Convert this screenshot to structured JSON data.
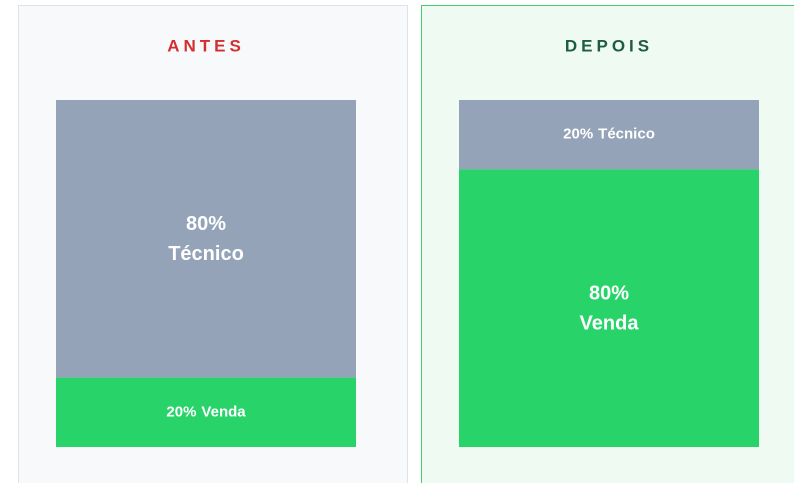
{
  "chart_data": [
    {
      "type": "bar",
      "title": "ANTES",
      "title_color": "#d32f2f",
      "ylim": [
        0,
        100
      ],
      "series": [
        {
          "name": "Técnico",
          "color": "#94a3b8",
          "values": [
            80
          ],
          "value_labels": [
            "80%"
          ]
        },
        {
          "name": "Venda",
          "color": "#28d46a",
          "values": [
            20
          ],
          "value_labels": [
            "20%"
          ]
        }
      ]
    },
    {
      "type": "bar",
      "title": "DEPOIS",
      "title_color": "#1e5c45",
      "ylim": [
        0,
        100
      ],
      "series": [
        {
          "name": "Técnico",
          "color": "#94a3b8",
          "values": [
            20
          ],
          "value_labels": [
            "20%"
          ]
        },
        {
          "name": "Venda",
          "color": "#28d46a",
          "values": [
            80
          ],
          "value_labels": [
            "80%"
          ]
        }
      ]
    }
  ]
}
